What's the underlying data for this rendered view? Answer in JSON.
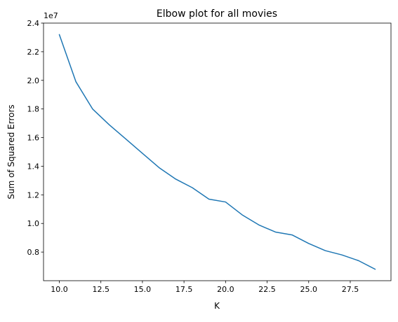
{
  "chart_data": {
    "type": "line",
    "title": "Elbow plot for all movies",
    "xlabel": "K",
    "ylabel": "Sum of Squared Errors",
    "y_offset_label": "1e7",
    "xlim": [
      9.05,
      29.95
    ],
    "ylim": [
      0.6,
      2.4
    ],
    "xticks": [
      10.0,
      12.5,
      15.0,
      17.5,
      20.0,
      22.5,
      25.0,
      27.5
    ],
    "xtick_labels": [
      "10.0",
      "12.5",
      "15.0",
      "17.5",
      "20.0",
      "22.5",
      "25.0",
      "27.5"
    ],
    "yticks": [
      0.8,
      1.0,
      1.2,
      1.4,
      1.6,
      1.8,
      2.0,
      2.2,
      2.4
    ],
    "ytick_labels": [
      "0.8",
      "1.0",
      "1.2",
      "1.4",
      "1.6",
      "1.8",
      "2.0",
      "2.2",
      "2.4"
    ],
    "grid": false,
    "series": [
      {
        "color": "#1f77b4",
        "x": [
          10,
          11,
          12,
          13,
          14,
          15,
          16,
          17,
          18,
          19,
          20,
          21,
          22,
          23,
          24,
          25,
          26,
          27,
          28,
          29
        ],
        "y": [
          2.32,
          1.99,
          1.8,
          1.69,
          1.59,
          1.49,
          1.39,
          1.31,
          1.25,
          1.17,
          1.15,
          1.06,
          0.99,
          0.94,
          0.92,
          0.86,
          0.81,
          0.78,
          0.74,
          0.68
        ]
      }
    ]
  }
}
